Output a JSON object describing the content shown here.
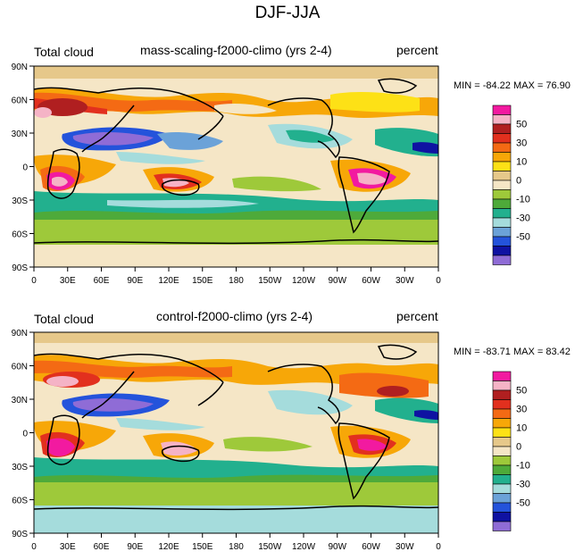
{
  "figure_title": "DJF-JJA",
  "lat_labels": [
    "90N",
    "60N",
    "30N",
    "0",
    "30S",
    "60S",
    "90S"
  ],
  "lon_labels": [
    "0",
    "30E",
    "60E",
    "90E",
    "120E",
    "150E",
    "180",
    "150W",
    "120W",
    "90W",
    "60W",
    "30W",
    "0"
  ],
  "colorbar": {
    "levels": [
      "50",
      "30",
      "10",
      "0",
      "-10",
      "-30",
      "-50"
    ],
    "colors": [
      "#f21aa0",
      "#f5b3c6",
      "#b01f20",
      "#e2301e",
      "#f46a14",
      "#f7a708",
      "#fde116",
      "#e6c88a",
      "#f5e6c6",
      "#9ec93a",
      "#4eaa3a",
      "#22b08e",
      "#a5dcdc",
      "#6ba2d8",
      "#2453db",
      "#0f12a2",
      "#8f6cd6"
    ]
  },
  "panels": [
    {
      "left_label": "Total cloud",
      "center_label": "mass-scaling-f2000-climo (yrs 2-4)",
      "right_label": "percent",
      "min_label": "MIN = -84.22",
      "max_label": "MAX =  76.90"
    },
    {
      "left_label": "Total cloud",
      "center_label": "control-f2000-climo (yrs 2-4)",
      "right_label": "percent",
      "min_label": "MIN = -83.71",
      "max_label": "MAX =  83.42"
    }
  ]
}
